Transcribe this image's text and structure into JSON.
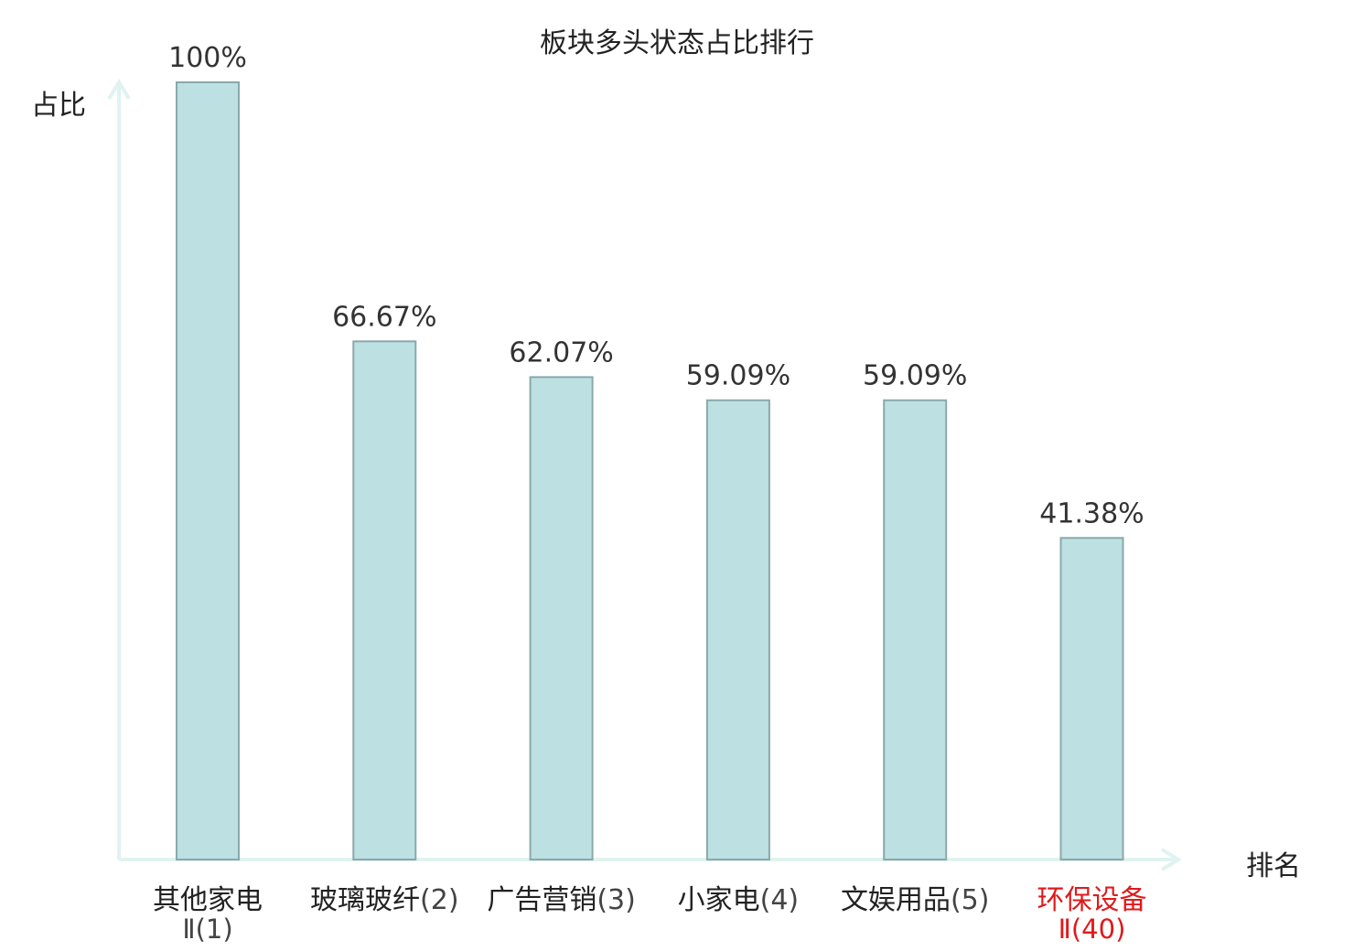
{
  "chart_data": {
    "type": "bar",
    "title": "板块多头状态占比排行",
    "xlabel": "排名",
    "ylabel": "占比",
    "ylim": [
      0,
      100
    ],
    "categories": [
      {
        "name": "其他家电",
        "rank": "Ⅱ(1)",
        "highlight": false
      },
      {
        "name": "玻璃玻纤",
        "rank": "(2)",
        "highlight": false
      },
      {
        "name": "广告营销",
        "rank": "(3)",
        "highlight": false
      },
      {
        "name": "小家电",
        "rank": "(4)",
        "highlight": false
      },
      {
        "name": "文娱用品",
        "rank": "(5)",
        "highlight": false
      },
      {
        "name": "环保设备",
        "rank": "Ⅱ(40)",
        "highlight": true
      }
    ],
    "values": [
      100,
      66.67,
      62.07,
      59.09,
      59.09,
      41.38
    ],
    "value_labels": [
      "100%",
      "66.67%",
      "62.07%",
      "59.09%",
      "59.09%",
      "41.38%"
    ],
    "grid": false,
    "legend": "none",
    "colors": {
      "bar_fill": "#bde0e3",
      "bar_stroke": "#8aa8ab",
      "axis": "#e0f3f0",
      "text": "#222222",
      "value_text": "#333333",
      "rank_text": "#444444",
      "highlight": "#e0191b"
    }
  }
}
